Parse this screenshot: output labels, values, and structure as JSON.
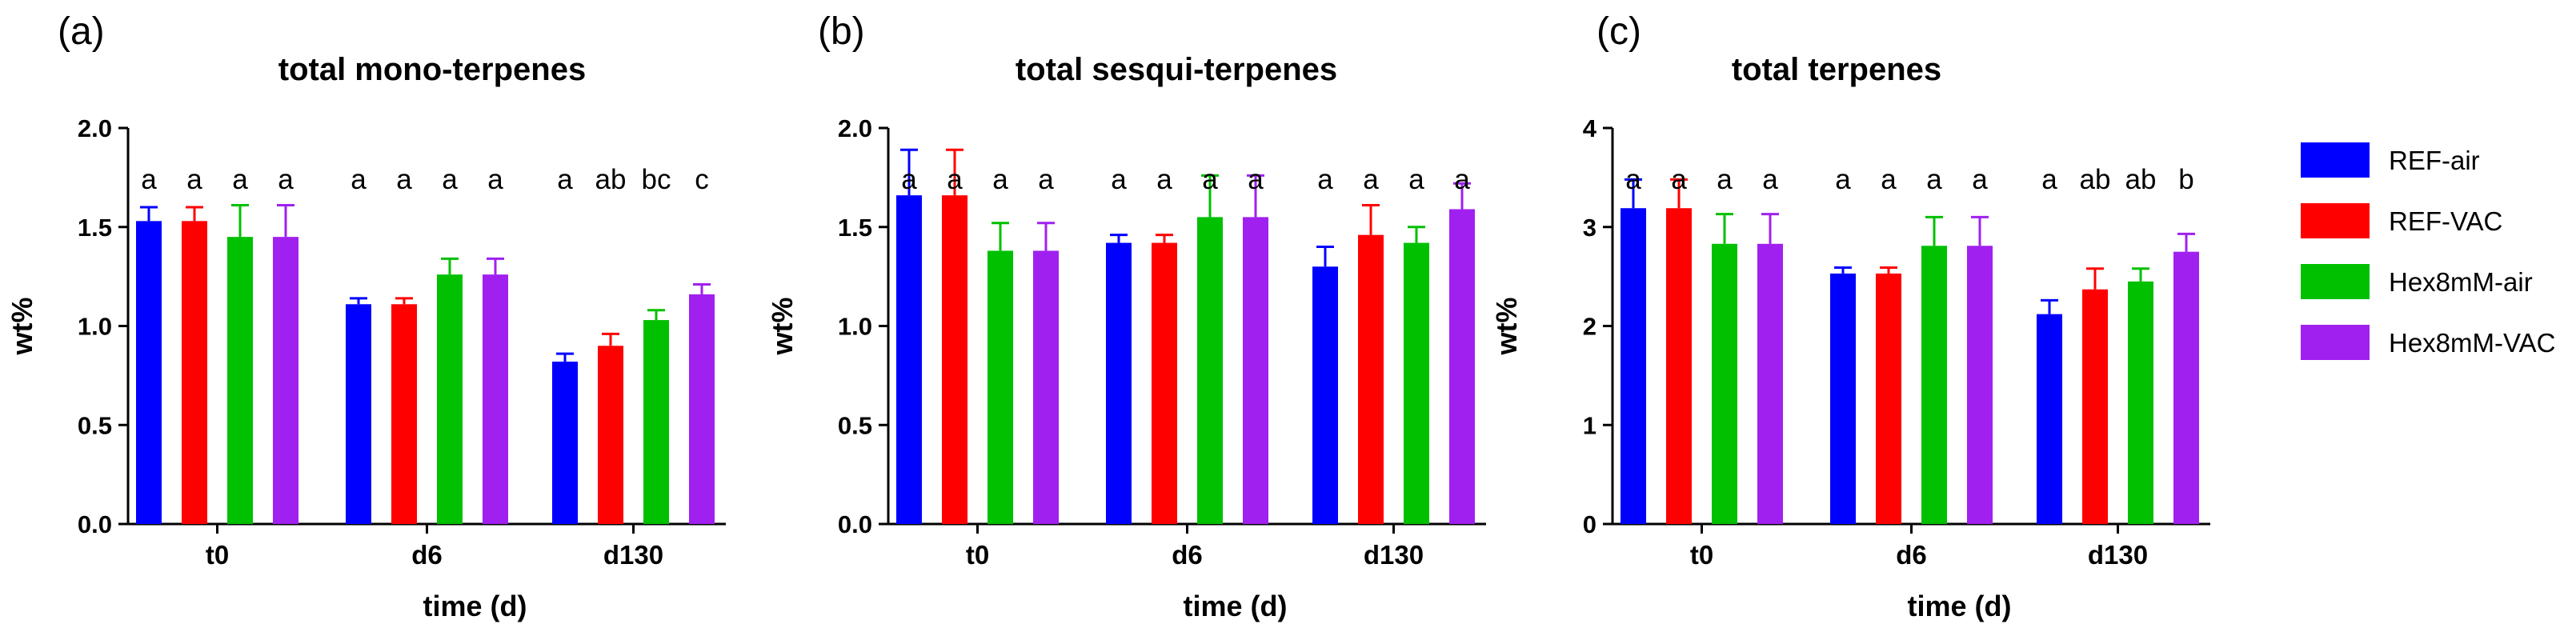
{
  "colors": {
    "REF-air": "#0000ff",
    "REF-VAC": "#ff0000",
    "Hex8mM-air": "#00c000",
    "Hex8mM-VAC": "#a020f0"
  },
  "legend": [
    "REF-air",
    "REF-VAC",
    "Hex8mM-air",
    "Hex8mM-VAC"
  ],
  "chart_data": [
    {
      "panel": "(a)",
      "type": "bar",
      "title": "total mono-terpenes",
      "xlabel": "time (d)",
      "ylabel": "wt%",
      "ylim": [
        0,
        2.0
      ],
      "yticks": [
        "0.0",
        "0.5",
        "1.0",
        "1.5",
        "2.0"
      ],
      "categories": [
        "t0",
        "d6",
        "d130"
      ],
      "series": [
        {
          "name": "REF-air",
          "values": [
            1.53,
            1.11,
            0.82
          ],
          "errors": [
            0.07,
            0.03,
            0.04
          ]
        },
        {
          "name": "REF-VAC",
          "values": [
            1.53,
            1.11,
            0.9
          ],
          "errors": [
            0.07,
            0.03,
            0.06
          ]
        },
        {
          "name": "Hex8mM-air",
          "values": [
            1.45,
            1.26,
            1.03
          ],
          "errors": [
            0.16,
            0.08,
            0.05
          ]
        },
        {
          "name": "Hex8mM-VAC",
          "values": [
            1.45,
            1.26,
            1.16
          ],
          "errors": [
            0.16,
            0.08,
            0.05
          ]
        }
      ],
      "significance": [
        [
          "a",
          "a",
          "a",
          "a"
        ],
        [
          "a",
          "a",
          "a",
          "a"
        ],
        [
          "a",
          "ab",
          "bc",
          "c"
        ]
      ]
    },
    {
      "panel": "(b)",
      "type": "bar",
      "title": "total sesqui-terpenes",
      "xlabel": "time (d)",
      "ylabel": "wt%",
      "ylim": [
        0,
        2.0
      ],
      "yticks": [
        "0.0",
        "0.5",
        "1.0",
        "1.5",
        "2.0"
      ],
      "categories": [
        "t0",
        "d6",
        "d130"
      ],
      "series": [
        {
          "name": "REF-air",
          "values": [
            1.66,
            1.42,
            1.3
          ],
          "errors": [
            0.23,
            0.04,
            0.1
          ]
        },
        {
          "name": "REF-VAC",
          "values": [
            1.66,
            1.42,
            1.46
          ],
          "errors": [
            0.23,
            0.04,
            0.15
          ]
        },
        {
          "name": "Hex8mM-air",
          "values": [
            1.38,
            1.55,
            1.42
          ],
          "errors": [
            0.14,
            0.21,
            0.08
          ]
        },
        {
          "name": "Hex8mM-VAC",
          "values": [
            1.38,
            1.55,
            1.59
          ],
          "errors": [
            0.14,
            0.21,
            0.13
          ]
        }
      ],
      "significance": [
        [
          "a",
          "a",
          "a",
          "a"
        ],
        [
          "a",
          "a",
          "a",
          "a"
        ],
        [
          "a",
          "a",
          "a",
          "a"
        ]
      ]
    },
    {
      "panel": "(c)",
      "type": "bar",
      "title": "total terpenes",
      "xlabel": "time (d)",
      "ylabel": "wt%",
      "ylim": [
        0,
        4
      ],
      "yticks": [
        "0",
        "1",
        "2",
        "3",
        "4"
      ],
      "categories": [
        "t0",
        "d6",
        "d130"
      ],
      "series": [
        {
          "name": "REF-air",
          "values": [
            3.19,
            2.53,
            2.12
          ],
          "errors": [
            0.29,
            0.06,
            0.14
          ]
        },
        {
          "name": "REF-VAC",
          "values": [
            3.19,
            2.53,
            2.37
          ],
          "errors": [
            0.29,
            0.06,
            0.21
          ]
        },
        {
          "name": "Hex8mM-air",
          "values": [
            2.83,
            2.81,
            2.45
          ],
          "errors": [
            0.3,
            0.29,
            0.13
          ]
        },
        {
          "name": "Hex8mM-VAC",
          "values": [
            2.83,
            2.81,
            2.75
          ],
          "errors": [
            0.3,
            0.29,
            0.18
          ]
        }
      ],
      "significance": [
        [
          "a",
          "a",
          "a",
          "a"
        ],
        [
          "a",
          "a",
          "a",
          "a"
        ],
        [
          "a",
          "ab",
          "ab",
          "b"
        ]
      ]
    }
  ]
}
